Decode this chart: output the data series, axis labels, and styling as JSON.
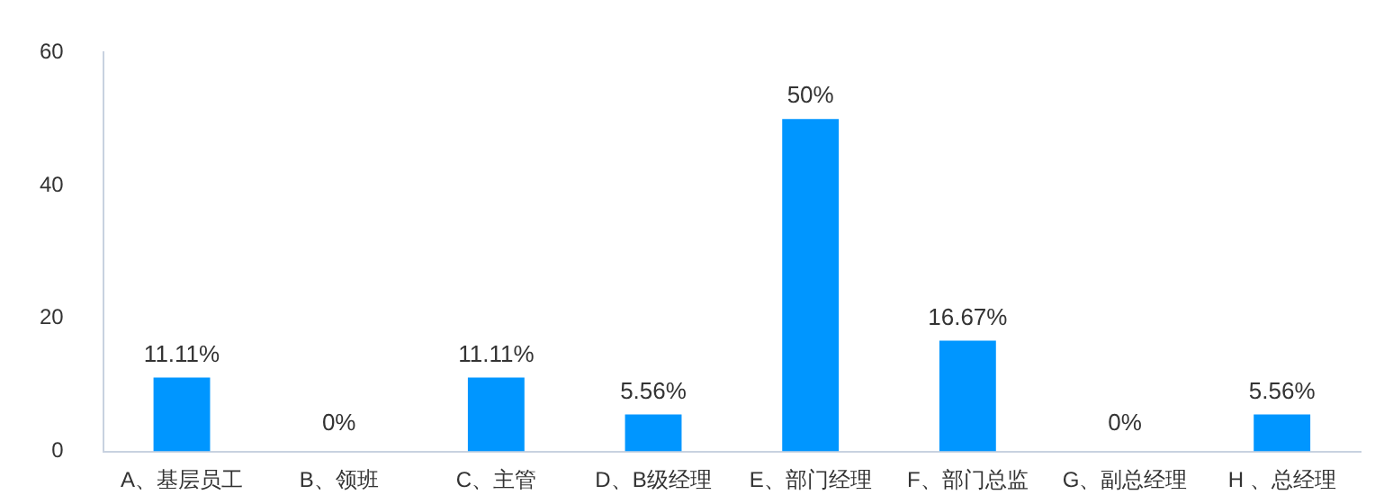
{
  "chart_data": {
    "type": "bar",
    "categories": [
      "A、基层员工",
      "B、领班",
      "C、主管",
      "D、B级经理",
      "E、部门经理",
      "F、部门总监",
      "G、副总经理",
      "H 、总经理"
    ],
    "values": [
      11.11,
      0,
      11.11,
      5.56,
      50,
      16.67,
      0,
      5.56
    ],
    "value_labels": [
      "11.11%",
      "0%",
      "11.11%",
      "5.56%",
      "50%",
      "16.67%",
      "0%",
      "5.56%"
    ],
    "color": "#0096ff",
    "ylim": [
      0,
      60
    ],
    "yticks": [
      0,
      20,
      40,
      60
    ],
    "grid": false,
    "legend": false
  }
}
